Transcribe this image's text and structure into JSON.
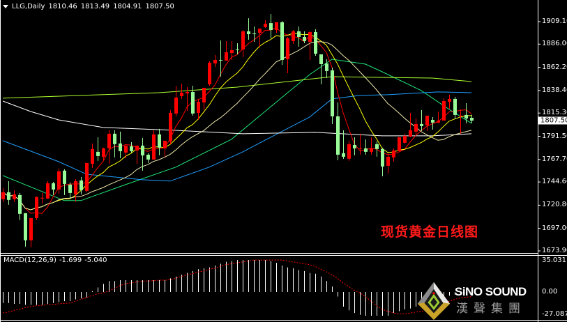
{
  "header": {
    "symbol": "LLG,Daily",
    "open": "1810.46",
    "high": "1813.49",
    "low": "1804.91",
    "close": "1807.50"
  },
  "price_axis": {
    "ticks": [
      "1909.10",
      "1886.00",
      "1862.20",
      "1838.40",
      "1815.30",
      "1791.50",
      "1767.70",
      "1744.60",
      "1720.80",
      "1697.00",
      "1673.90"
    ],
    "current_price": "1807.50"
  },
  "macd_panel": {
    "name": "MACD(12,26,9)",
    "macd_value": "-1.699",
    "signal_value": "-5.040",
    "ticks": [
      "35.031",
      "0.00",
      "-27.087"
    ]
  },
  "annotation": "现货黄金日线图",
  "logo": {
    "brand": "SiNO SOUND",
    "chinese": "漢聲集團"
  },
  "colors": {
    "background": "#000000",
    "bull_candle": "#ff0000",
    "bear_candle": "#98fb98",
    "ma_fast": "#ff0000",
    "ma_mid": "#ffff00",
    "ma_slow": "#eee8aa",
    "ma_green": "#1ee87a",
    "ma_chartreuse": "#adff2f",
    "ma_blue": "#1e9fff",
    "ma_white": "#ffffff",
    "macd_hist": "#ffffff",
    "macd_signal": "#ff0000"
  },
  "chart_data": {
    "type": "candlestick",
    "timeframe": "Daily",
    "ylim": [
      1673.9,
      1909.1
    ],
    "candles_ohlc": [
      [
        1726.9,
        1738.3,
        1724.1,
        1734.1
      ],
      [
        1734.1,
        1745.5,
        1721.2,
        1726.2
      ],
      [
        1726.9,
        1736.2,
        1724.1,
        1731.9
      ],
      [
        1731.2,
        1733.3,
        1705.5,
        1711.9
      ],
      [
        1712.6,
        1712.6,
        1678.3,
        1684.8
      ],
      [
        1684.8,
        1707.6,
        1677.6,
        1707.6
      ],
      [
        1707.6,
        1729.8,
        1705.5,
        1729.1
      ],
      [
        1728.4,
        1733.3,
        1722.6,
        1728.4
      ],
      [
        1727.6,
        1745.5,
        1727.6,
        1743.3
      ],
      [
        1743.3,
        1744.8,
        1731.2,
        1736.9
      ],
      [
        1736.9,
        1758.4,
        1732.6,
        1755.5
      ],
      [
        1756.2,
        1757.6,
        1731.2,
        1742.6
      ],
      [
        1741.9,
        1744.1,
        1727.6,
        1733.3
      ],
      [
        1731.9,
        1747.6,
        1724.1,
        1745.5
      ],
      [
        1746.2,
        1749.8,
        1731.9,
        1736.2
      ],
      [
        1735.5,
        1764.1,
        1734.1,
        1764.1
      ],
      [
        1763.3,
        1784.1,
        1759.1,
        1778.4
      ],
      [
        1775.5,
        1790.5,
        1766.2,
        1771.2
      ],
      [
        1770.5,
        1779.8,
        1766.2,
        1779.1
      ],
      [
        1779.1,
        1797.6,
        1763.3,
        1794.1
      ],
      [
        1794.1,
        1797.6,
        1769.8,
        1783.4
      ],
      [
        1784.1,
        1796.2,
        1769.1,
        1776.2
      ],
      [
        1774.8,
        1781.9,
        1769.1,
        1781.9
      ],
      [
        1781.2,
        1785.5,
        1774.8,
        1776.2
      ],
      [
        1776.9,
        1781.9,
        1763.3,
        1781.9
      ],
      [
        1781.9,
        1789.8,
        1756.2,
        1771.9
      ],
      [
        1772.6,
        1774.1,
        1764.1,
        1767.6
      ],
      [
        1767.6,
        1797.6,
        1767.6,
        1793.4
      ],
      [
        1793.4,
        1799.1,
        1771.9,
        1779.8
      ],
      [
        1779.1,
        1786.9,
        1770.5,
        1786.9
      ],
      [
        1786.2,
        1818.4,
        1783.4,
        1815.5
      ],
      [
        1814.8,
        1843.3,
        1811.9,
        1831.2
      ],
      [
        1832.6,
        1845.5,
        1829.8,
        1836.2
      ],
      [
        1835.5,
        1841.9,
        1817.6,
        1836.9
      ],
      [
        1836.9,
        1843.3,
        1812.6,
        1814.8
      ],
      [
        1815.5,
        1829.8,
        1808.3,
        1826.9
      ],
      [
        1826.2,
        1841.2,
        1818.4,
        1841.2
      ],
      [
        1844.8,
        1868.4,
        1843.3,
        1866.9
      ],
      [
        1866.2,
        1874.8,
        1862.6,
        1869.8
      ],
      [
        1869.8,
        1889.8,
        1852.6,
        1869.1
      ],
      [
        1869.1,
        1889.1,
        1869.1,
        1877.6
      ],
      [
        1876.9,
        1889.1,
        1869.8,
        1879.8
      ],
      [
        1880.5,
        1886.9,
        1875.5,
        1880.0
      ],
      [
        1880.5,
        1900.5,
        1872.6,
        1899.1
      ],
      [
        1899.1,
        1912.6,
        1890.5,
        1896.2
      ],
      [
        1896.9,
        1904.1,
        1888.4,
        1896.5
      ],
      [
        1897.6,
        1901.9,
        1882.6,
        1901.9
      ],
      [
        1903.4,
        1910.5,
        1902.6,
        1906.9
      ],
      [
        1907.6,
        1916.9,
        1891.9,
        1900.5
      ],
      [
        1900.5,
        1908.4,
        1897.6,
        1908.4
      ],
      [
        1908.4,
        1909.8,
        1864.8,
        1869.8
      ],
      [
        1870.5,
        1893.4,
        1856.2,
        1891.9
      ],
      [
        1889.1,
        1900.5,
        1886.2,
        1899.1
      ],
      [
        1899.1,
        1904.1,
        1883.4,
        1893.4
      ],
      [
        1893.4,
        1899.1,
        1886.9,
        1889.1
      ],
      [
        1888.4,
        1899.1,
        1869.8,
        1898.4
      ],
      [
        1898.4,
        1901.2,
        1874.1,
        1876.2
      ],
      [
        1875.5,
        1875.5,
        1844.8,
        1865.5
      ],
      [
        1866.2,
        1870.5,
        1851.2,
        1858.4
      ],
      [
        1859.1,
        1861.9,
        1804.1,
        1811.9
      ],
      [
        1811.9,
        1826.2,
        1766.9,
        1772.6
      ],
      [
        1774.1,
        1797.6,
        1768.4,
        1770.5
      ],
      [
        1768.4,
        1786.9,
        1766.2,
        1783.4
      ],
      [
        1782.6,
        1790.5,
        1771.9,
        1779.1
      ],
      [
        1778.4,
        1794.1,
        1772.6,
        1779.1
      ],
      [
        1779.1,
        1788.4,
        1772.6,
        1775.5
      ],
      [
        1775.5,
        1790.5,
        1772.6,
        1779.1
      ],
      [
        1783.4,
        1786.2,
        1770.5,
        1778.4
      ],
      [
        1778.4,
        1779.8,
        1750.5,
        1760.5
      ],
      [
        1761.2,
        1774.1,
        1753.4,
        1770.5
      ],
      [
        1769.8,
        1779.1,
        1765.5,
        1776.9
      ],
      [
        1776.2,
        1790.5,
        1776.2,
        1790.5
      ],
      [
        1784.8,
        1794.1,
        1784.1,
        1791.9
      ],
      [
        1791.2,
        1815.5,
        1790.5,
        1797.6
      ],
      [
        1796.2,
        1809.8,
        1793.4,
        1804.1
      ],
      [
        1804.1,
        1818.4,
        1796.9,
        1801.9
      ],
      [
        1802.6,
        1812.6,
        1796.9,
        1812.6
      ],
      [
        1808.3,
        1811.2,
        1798.4,
        1805.5
      ],
      [
        1805.5,
        1816.9,
        1804.8,
        1807.6
      ],
      [
        1807.6,
        1830.5,
        1807.6,
        1827.6
      ],
      [
        1826.9,
        1834.1,
        1819.8,
        1829.8
      ],
      [
        1829.8,
        1831.9,
        1809.1,
        1813.4
      ],
      [
        1811.9,
        1819.1,
        1794.1,
        1812.6
      ],
      [
        1813.4,
        1825.5,
        1804.8,
        1809.8
      ],
      [
        1810.46,
        1813.49,
        1804.91,
        1807.5
      ]
    ],
    "moving_averages_computed": [
      {
        "period": 5,
        "color": "#ff0000"
      },
      {
        "period": 10,
        "color": "#ffff00"
      },
      {
        "period": 20,
        "color": "#eee8aa"
      }
    ],
    "moving_averages_traced": [
      {
        "color": "#1ee87a",
        "points": [
          [
            0,
            1751.2
          ],
          [
            11,
            1725.5
          ],
          [
            14,
            1725.5
          ],
          [
            22,
            1741.9
          ],
          [
            31,
            1759.8
          ],
          [
            41,
            1788.4
          ],
          [
            50,
            1831.2
          ],
          [
            55,
            1854.8
          ],
          [
            59,
            1870.5
          ],
          [
            65,
            1865.5
          ],
          [
            68,
            1857.6
          ],
          [
            75,
            1838.4
          ],
          [
            80,
            1819.1
          ],
          [
            84,
            1804.8
          ]
        ]
      },
      {
        "color": "#adff2f",
        "points": [
          [
            0,
            1830.5
          ],
          [
            28,
            1836.2
          ],
          [
            42,
            1841.9
          ],
          [
            59,
            1852.6
          ],
          [
            77,
            1851.2
          ],
          [
            84,
            1847.6
          ]
        ]
      },
      {
        "color": "#1e9fff",
        "points": [
          [
            0,
            1786.9
          ],
          [
            10,
            1765.5
          ],
          [
            15,
            1752.6
          ],
          [
            25,
            1746.9
          ],
          [
            30,
            1745.5
          ],
          [
            37,
            1759.8
          ],
          [
            43,
            1775.5
          ],
          [
            49,
            1793.4
          ],
          [
            55,
            1811.2
          ],
          [
            59,
            1829.8
          ],
          [
            64,
            1833.4
          ],
          [
            69,
            1834.1
          ],
          [
            78,
            1837.0
          ],
          [
            84,
            1836.2
          ]
        ]
      },
      {
        "color": "#ffffff",
        "points": [
          [
            0,
            1827.6
          ],
          [
            5,
            1816.9
          ],
          [
            10,
            1808.3
          ],
          [
            18,
            1800.5
          ],
          [
            31,
            1797.6
          ],
          [
            43,
            1794.1
          ],
          [
            56,
            1795.5
          ],
          [
            68,
            1791.9
          ],
          [
            77,
            1791.9
          ],
          [
            84,
            1794.1
          ]
        ]
      }
    ],
    "macd": {
      "ylim": [
        -27.087,
        35.031
      ],
      "main": [
        -12,
        -12,
        -13,
        -13,
        -14,
        -14,
        -14,
        -14,
        -13,
        -12,
        -11,
        -10,
        -10,
        -8,
        -7,
        -6,
        1,
        5,
        9,
        12,
        12,
        13,
        13,
        13,
        13,
        13,
        13,
        13,
        13,
        13,
        15,
        17,
        19,
        21,
        23,
        25,
        26,
        27,
        29,
        31,
        33,
        34,
        35,
        35,
        35,
        35,
        35,
        35,
        34,
        32,
        29,
        27,
        26,
        24,
        23,
        21,
        20,
        17,
        12,
        6,
        -5,
        -16,
        -20,
        -23,
        -25,
        -26,
        -26,
        -26,
        -26,
        -26,
        -23,
        -21,
        -19,
        -18,
        -16,
        -15,
        -13,
        -11,
        -9,
        -6,
        -4,
        -3,
        -2.5,
        -2,
        -1.699
      ],
      "signal": [
        -23,
        -22,
        -20,
        -19,
        -17,
        -16,
        -15,
        -14.5,
        -14,
        -13.5,
        -13,
        -12.5,
        -12,
        -10,
        -8,
        -6,
        -4,
        -2,
        -1,
        1,
        4,
        7,
        9,
        10,
        11,
        12,
        12,
        12.5,
        13,
        13,
        13.5,
        15,
        17,
        19,
        20,
        22,
        23,
        25,
        26,
        28,
        30,
        31,
        32,
        33,
        34,
        35,
        35,
        35,
        35,
        35,
        35,
        34,
        33,
        32,
        31,
        30,
        28,
        25,
        22,
        19,
        15,
        10,
        6,
        2,
        -1,
        -5,
        -10,
        -15,
        -19,
        -21,
        -23,
        -24,
        -24,
        -23,
        -22,
        -21,
        -20,
        -18,
        -15,
        -13,
        -10,
        -8,
        -6.5,
        -5.7,
        -5.04
      ]
    }
  }
}
